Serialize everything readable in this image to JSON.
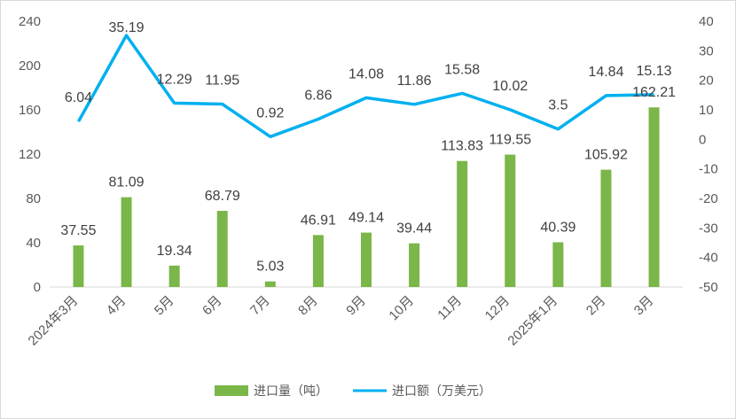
{
  "chart_data": {
    "type": "bar+line",
    "categories": [
      "2024年3月",
      "4月",
      "5月",
      "6月",
      "7月",
      "8月",
      "9月",
      "10月",
      "11月",
      "12月",
      "2025年1月",
      "2月",
      "3月"
    ],
    "series": [
      {
        "name": "进口量（吨）",
        "type": "bar",
        "axis": "left",
        "color": "#7ab648",
        "values": [
          37.55,
          81.09,
          19.34,
          68.79,
          5.03,
          46.91,
          49.14,
          39.44,
          113.83,
          119.55,
          40.39,
          105.92,
          162.21
        ],
        "labels": [
          "37.55",
          "81.09",
          "19.34",
          "68.79",
          "5.03",
          "46.91",
          "49.14",
          "39.44",
          "113.83",
          "119.55",
          "40.39",
          "105.92",
          "162.21"
        ]
      },
      {
        "name": "进口额（万美元）",
        "type": "line",
        "axis": "right",
        "color": "#00b0f0",
        "values": [
          6.04,
          35.19,
          12.29,
          11.95,
          0.92,
          6.86,
          14.08,
          11.86,
          15.58,
          10.02,
          3.5,
          14.84,
          15.13
        ],
        "labels": [
          "6.04",
          "35.19",
          "12.29",
          "11.95",
          "0.92",
          "6.86",
          "14.08",
          "11.86",
          "15.58",
          "10.02",
          "3.5",
          "14.84",
          "15.13"
        ]
      }
    ],
    "y_left": {
      "range": [
        0,
        240
      ],
      "ticks": [
        "0",
        "40",
        "80",
        "120",
        "160",
        "200",
        "240"
      ]
    },
    "y_right": {
      "range": [
        -50,
        40
      ],
      "ticks": [
        "-50",
        "-40",
        "-30",
        "-20",
        "-10",
        "0",
        "10",
        "20",
        "30",
        "40"
      ]
    },
    "grid": false,
    "legend": "bottom"
  }
}
